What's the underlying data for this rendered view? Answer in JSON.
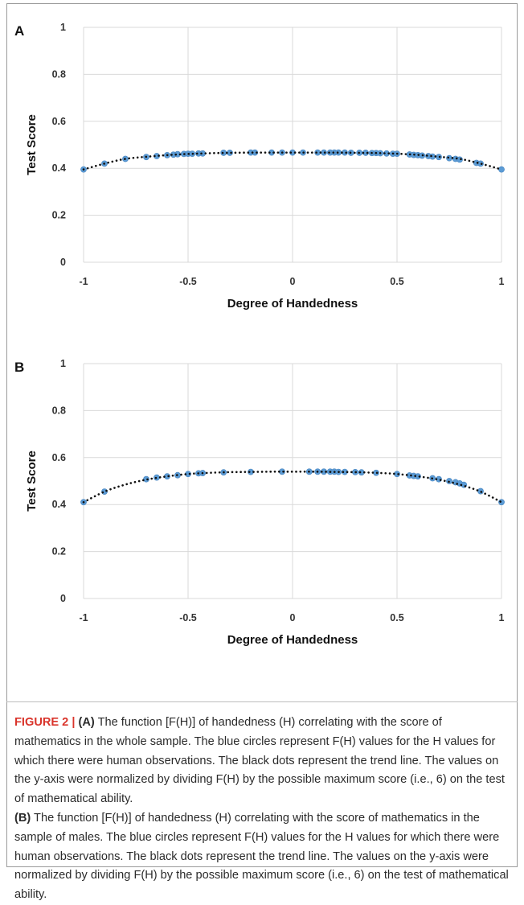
{
  "chart_data": [
    {
      "type": "scatter",
      "panel": "A",
      "xlabel": "Degree of Handedness",
      "ylabel": "Test Score",
      "xlim": [
        -1,
        1
      ],
      "ylim": [
        0,
        1
      ],
      "xticks": [
        "-1",
        "-0.5",
        "0",
        "0.5",
        "1"
      ],
      "yticks": [
        "0",
        "0.2",
        "0.4",
        "0.6",
        "0.8",
        "1"
      ],
      "grid": true,
      "series": [
        {
          "kind": "points",
          "color": "#5b9bd5",
          "x": [
            -1,
            -0.9,
            -0.8,
            -0.7,
            -0.65,
            -0.6,
            -0.57,
            -0.55,
            -0.52,
            -0.5,
            -0.48,
            -0.45,
            -0.43,
            -0.33,
            -0.3,
            -0.2,
            -0.18,
            -0.1,
            -0.05,
            0,
            0.05,
            0.12,
            0.15,
            0.18,
            0.2,
            0.22,
            0.25,
            0.28,
            0.32,
            0.35,
            0.38,
            0.4,
            0.42,
            0.45,
            0.48,
            0.5,
            0.56,
            0.58,
            0.6,
            0.62,
            0.65,
            0.67,
            0.7,
            0.75,
            0.78,
            0.8,
            0.88,
            0.9,
            1
          ],
          "y": [
            0.395,
            0.42,
            0.44,
            0.448,
            0.452,
            0.456,
            0.458,
            0.46,
            0.461,
            0.462,
            0.462,
            0.463,
            0.463,
            0.466,
            0.466,
            0.467,
            0.467,
            0.467,
            0.467,
            0.467,
            0.467,
            0.467,
            0.467,
            0.467,
            0.467,
            0.467,
            0.467,
            0.466,
            0.466,
            0.466,
            0.465,
            0.465,
            0.464,
            0.463,
            0.462,
            0.462,
            0.459,
            0.457,
            0.456,
            0.454,
            0.452,
            0.45,
            0.448,
            0.443,
            0.44,
            0.437,
            0.423,
            0.42,
            0.395
          ]
        },
        {
          "kind": "trendline",
          "color": "#111111",
          "x": [
            -1,
            -0.9,
            -0.8,
            -0.7,
            -0.6,
            -0.5,
            -0.4,
            -0.3,
            -0.2,
            -0.1,
            0,
            0.1,
            0.2,
            0.3,
            0.4,
            0.5,
            0.6,
            0.7,
            0.8,
            0.9,
            1
          ],
          "y": [
            0.395,
            0.42,
            0.44,
            0.449,
            0.456,
            0.461,
            0.464,
            0.466,
            0.467,
            0.467,
            0.467,
            0.467,
            0.467,
            0.466,
            0.465,
            0.462,
            0.457,
            0.449,
            0.44,
            0.42,
            0.395
          ]
        }
      ]
    },
    {
      "type": "scatter",
      "panel": "B",
      "xlabel": "Degree of Handedness",
      "ylabel": "Test Score",
      "xlim": [
        -1,
        1
      ],
      "ylim": [
        0,
        1
      ],
      "xticks": [
        "-1",
        "-0.5",
        "0",
        "0.5",
        "1"
      ],
      "yticks": [
        "0",
        "0.2",
        "0.4",
        "0.6",
        "0.8",
        "1"
      ],
      "grid": true,
      "series": [
        {
          "kind": "points",
          "color": "#5b9bd5",
          "x": [
            -1,
            -0.9,
            -0.7,
            -0.65,
            -0.6,
            -0.55,
            -0.5,
            -0.45,
            -0.43,
            -0.33,
            -0.2,
            -0.05,
            0.08,
            0.12,
            0.15,
            0.18,
            0.2,
            0.22,
            0.25,
            0.3,
            0.33,
            0.4,
            0.5,
            0.56,
            0.58,
            0.6,
            0.67,
            0.7,
            0.75,
            0.78,
            0.8,
            0.82,
            0.9,
            1
          ],
          "y": [
            0.41,
            0.455,
            0.508,
            0.515,
            0.52,
            0.525,
            0.53,
            0.533,
            0.534,
            0.537,
            0.539,
            0.54,
            0.54,
            0.54,
            0.54,
            0.54,
            0.54,
            0.539,
            0.539,
            0.538,
            0.537,
            0.535,
            0.53,
            0.524,
            0.522,
            0.52,
            0.512,
            0.508,
            0.5,
            0.495,
            0.49,
            0.484,
            0.457,
            0.41
          ]
        },
        {
          "kind": "trendline",
          "color": "#111111",
          "x": [
            -1,
            -0.9,
            -0.8,
            -0.7,
            -0.6,
            -0.5,
            -0.4,
            -0.3,
            -0.2,
            -0.1,
            0,
            0.1,
            0.2,
            0.3,
            0.4,
            0.5,
            0.6,
            0.7,
            0.8,
            0.9,
            1
          ],
          "y": [
            0.41,
            0.455,
            0.485,
            0.506,
            0.52,
            0.53,
            0.535,
            0.538,
            0.539,
            0.54,
            0.54,
            0.54,
            0.539,
            0.538,
            0.535,
            0.53,
            0.52,
            0.506,
            0.485,
            0.455,
            0.41
          ]
        }
      ]
    }
  ],
  "caption": {
    "figure_label": "FIGURE 2 |",
    "panel_a_tag": "(A)",
    "panel_a_text": " The function [F(H)] of handedness (H) correlating with the score of mathematics in the whole sample. The blue circles represent F(H) values for the H values for which there were human observations. The black dots represent the trend line. The values on the y-axis were normalized by dividing F(H) by the possible maximum score (i.e., 6) on the test of mathematical ability.",
    "panel_b_tag": "(B)",
    "panel_b_text": " The function [F(H)] of handedness (H) correlating with the score of mathematics in the sample of males. The blue circles represent F(H) values for the H values for which there were human observations. The black dots represent the trend line. The values on the y-axis were normalized by dividing F(H) by the possible maximum score (i.e., 6) on the test of mathematical ability."
  }
}
